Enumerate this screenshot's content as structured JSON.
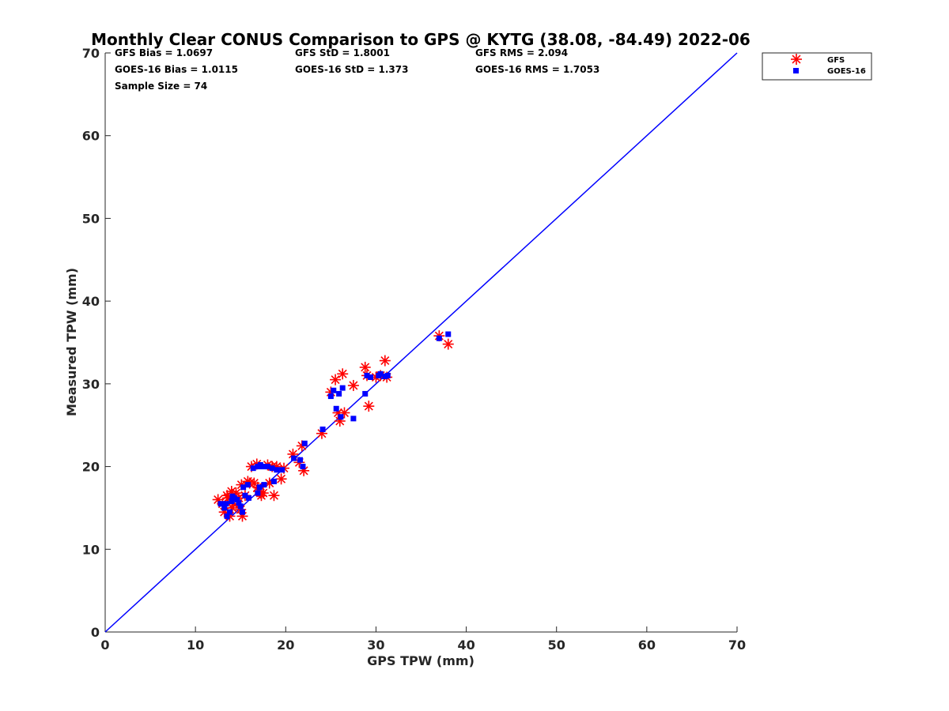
{
  "chart_data": {
    "type": "scatter",
    "title": "Monthly Clear CONUS Comparison to GPS @ KYTG (38.08, -84.49) 2022-06",
    "xlabel": "GPS TPW (mm)",
    "ylabel": "Measured TPW (mm)",
    "xlim": [
      0,
      70
    ],
    "ylim": [
      0,
      70
    ],
    "xticks": [
      "0",
      "10",
      "20",
      "30",
      "40",
      "50",
      "60",
      "70"
    ],
    "yticks": [
      "0",
      "10",
      "20",
      "30",
      "40",
      "50",
      "60",
      "70"
    ],
    "grid": false,
    "legend_position": "top-right outside",
    "stats": {
      "gfs_bias": "GFS Bias = 1.0697",
      "gfs_std": "GFS StD = 1.8001",
      "gfs_rms": "GFS RMS = 2.094",
      "goes_bias": "GOES-16 Bias = 1.0115",
      "goes_std": "GOES-16 StD = 1.373",
      "goes_rms": "GOES-16 RMS = 1.7053",
      "sample_size": "Sample Size = 74"
    },
    "reference_line": {
      "name": "1:1 line",
      "x": [
        0,
        70
      ],
      "y": [
        0,
        70
      ],
      "color": "#0000ff"
    },
    "series": [
      {
        "name": "GFS",
        "marker": "asterisk",
        "color": "#ff0000",
        "x": [
          12.5,
          13.0,
          13.5,
          14.0,
          14.5,
          14.8,
          15.0,
          15.2,
          13.2,
          13.8,
          14.2,
          15.5,
          16.0,
          16.5,
          15.8,
          16.2,
          16.8,
          17.0,
          17.3,
          17.5,
          18.0,
          18.5,
          18.7,
          19.0,
          19.5,
          19.8,
          13.6,
          14.1,
          15.1,
          16.9,
          17.2,
          18.2,
          20.8,
          21.5,
          22.0,
          21.8,
          24.0,
          25.0,
          25.5,
          25.8,
          26.0,
          26.3,
          26.5,
          27.5,
          28.8,
          29.2,
          29.0,
          30.0,
          31.0,
          31.2,
          30.5,
          37.0,
          38.0
        ],
        "y": [
          16.0,
          15.5,
          16.5,
          17.0,
          16.8,
          16.2,
          14.8,
          14.0,
          14.5,
          14.0,
          15.5,
          16.5,
          18.0,
          18.0,
          18.2,
          20.0,
          20.3,
          17.0,
          16.5,
          16.8,
          20.2,
          20.0,
          16.5,
          20.0,
          18.5,
          19.8,
          16.2,
          15.0,
          17.8,
          17.5,
          16.8,
          18.0,
          21.5,
          20.5,
          19.5,
          22.5,
          24.0,
          29.0,
          30.5,
          26.5,
          25.5,
          31.2,
          26.5,
          29.8,
          32.0,
          27.3,
          31.0,
          30.8,
          32.8,
          30.8,
          31.0,
          35.8,
          34.8
        ]
      },
      {
        "name": "GOES-16",
        "marker": "square",
        "color": "#0000ff",
        "x": [
          12.8,
          13.2,
          13.5,
          13.8,
          14.0,
          14.3,
          14.6,
          15.0,
          15.2,
          15.5,
          13.4,
          14.1,
          14.8,
          15.8,
          16.4,
          16.9,
          17.2,
          17.5,
          18.0,
          18.5,
          19.0,
          19.6,
          16.9,
          17.1,
          17.6,
          18.7,
          15.3,
          15.9,
          20.9,
          21.6,
          21.9,
          22.1,
          24.1,
          25.0,
          25.3,
          25.6,
          25.9,
          26.3,
          26.1,
          27.5,
          29.0,
          29.4,
          28.8,
          30.3,
          30.5,
          31.0,
          31.3,
          37.0,
          38.0
        ],
        "y": [
          15.5,
          15.0,
          14.0,
          14.5,
          15.8,
          16.2,
          16.0,
          15.2,
          14.5,
          16.5,
          15.5,
          16.4,
          15.6,
          17.8,
          19.8,
          20.0,
          20.2,
          20.0,
          20.0,
          19.8,
          19.6,
          19.6,
          16.8,
          17.5,
          17.8,
          18.2,
          17.5,
          16.2,
          21.0,
          20.8,
          20.0,
          22.8,
          24.5,
          28.5,
          29.2,
          27.0,
          28.8,
          29.5,
          26.0,
          25.8,
          31.0,
          30.8,
          28.8,
          31.0,
          31.2,
          30.9,
          31.0,
          35.5,
          36.0
        ]
      }
    ]
  }
}
